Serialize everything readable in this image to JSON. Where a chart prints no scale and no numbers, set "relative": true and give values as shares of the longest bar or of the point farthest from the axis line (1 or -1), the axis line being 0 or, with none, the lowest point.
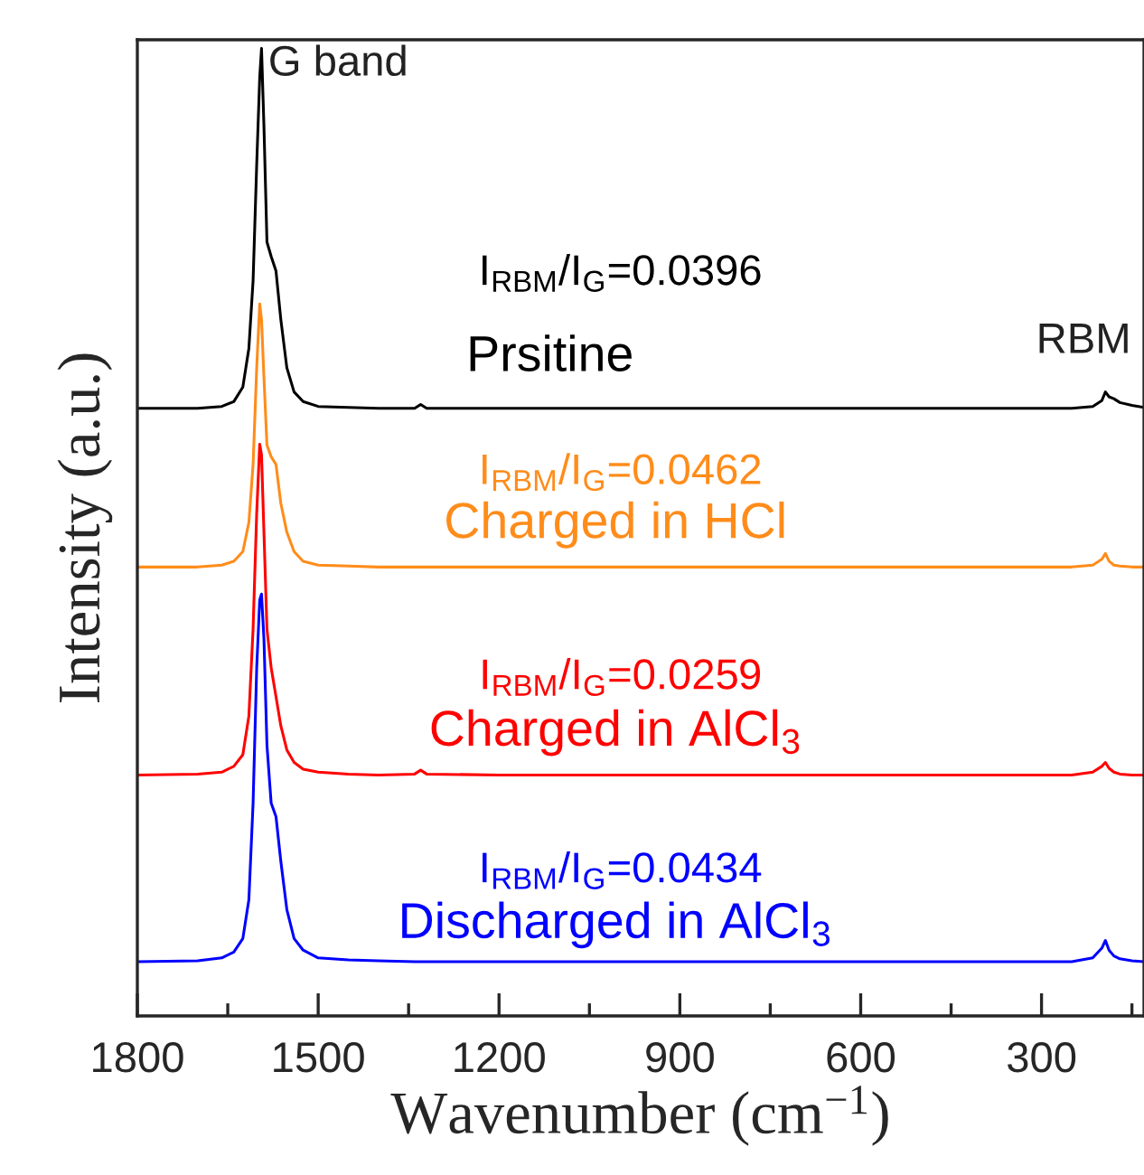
{
  "chart_data": {
    "type": "line",
    "relative": true,
    "xlabel": "Wavenumber (cm$^{−1}$)",
    "ylabel": "Intensity (a.u.)",
    "xlim": [
      1800,
      130
    ],
    "xticks": [
      1800,
      {
        "value": 1650,
        "label": null
      },
      1500,
      {
        "value": 1350,
        "label": null
      },
      1200,
      {
        "value": 1050,
        "label": null
      },
      900,
      {
        "value": 750,
        "label": null
      },
      600,
      {
        "value": 450,
        "label": null
      },
      300,
      {
        "value": 150,
        "label": null
      }
    ],
    "tick_labels": "x",
    "grid": false,
    "legend": false,
    "x": [
      1800,
      1700,
      1660,
      1640,
      1625,
      1615,
      1608,
      1602,
      1597,
      1594,
      1590,
      1585,
      1578,
      1570,
      1562,
      1552,
      1540,
      1525,
      1500,
      1450,
      1400,
      1340,
      1330,
      1320,
      1200,
      1000,
      800,
      600,
      400,
      250,
      215,
      200,
      194,
      188,
      180,
      170,
      150,
      130
    ],
    "series": [
      {
        "name": "Prsitine",
        "color": "#000000",
        "values": [
          0.628,
          0.628,
          0.63,
          0.635,
          0.65,
          0.69,
          0.76,
          0.88,
          0.97,
          1.0,
          0.92,
          0.8,
          0.785,
          0.77,
          0.72,
          0.67,
          0.645,
          0.635,
          0.63,
          0.629,
          0.628,
          0.628,
          0.632,
          0.628,
          0.628,
          0.628,
          0.628,
          0.628,
          0.628,
          0.628,
          0.63,
          0.636,
          0.645,
          0.64,
          0.638,
          0.634,
          0.631,
          0.629
        ]
      },
      {
        "name": "Charged in HCl",
        "color": "#ff8c1a",
        "values": [
          0.464,
          0.464,
          0.466,
          0.47,
          0.48,
          0.51,
          0.57,
          0.67,
          0.736,
          0.72,
          0.66,
          0.59,
          0.578,
          0.57,
          0.53,
          0.5,
          0.48,
          0.47,
          0.466,
          0.465,
          0.464,
          0.464,
          0.464,
          0.464,
          0.464,
          0.464,
          0.464,
          0.464,
          0.464,
          0.464,
          0.466,
          0.472,
          0.478,
          0.47,
          0.466,
          0.465,
          0.464,
          0.464
        ]
      },
      {
        "name": "Charged in AlCl$_{3}$",
        "color": "#ff0000",
        "values": [
          0.249,
          0.25,
          0.252,
          0.258,
          0.27,
          0.31,
          0.4,
          0.52,
          0.591,
          0.58,
          0.5,
          0.4,
          0.36,
          0.33,
          0.3,
          0.275,
          0.262,
          0.255,
          0.252,
          0.25,
          0.249,
          0.25,
          0.254,
          0.25,
          0.249,
          0.249,
          0.249,
          0.249,
          0.249,
          0.249,
          0.252,
          0.258,
          0.262,
          0.256,
          0.252,
          0.25,
          0.249,
          0.249
        ]
      },
      {
        "name": "Discharged in AlCl$_{3}$",
        "color": "#0000ff",
        "values": [
          0.056,
          0.057,
          0.06,
          0.066,
          0.08,
          0.12,
          0.22,
          0.36,
          0.43,
          0.436,
          0.39,
          0.28,
          0.22,
          0.206,
          0.16,
          0.11,
          0.08,
          0.068,
          0.06,
          0.058,
          0.057,
          0.056,
          0.056,
          0.056,
          0.056,
          0.056,
          0.056,
          0.056,
          0.056,
          0.056,
          0.06,
          0.07,
          0.078,
          0.068,
          0.062,
          0.059,
          0.057,
          0.056
        ]
      }
    ],
    "annotations": [
      "G band",
      "RBM",
      "I$_{RBM}$/I$_{G}$=0.0396",
      "I$_{RBM}$/I$_{G}$=0.0462",
      "I$_{RBM}$/I$_{G}$=0.0259",
      "I$_{RBM}$/I$_{G}$=0.0434"
    ]
  }
}
